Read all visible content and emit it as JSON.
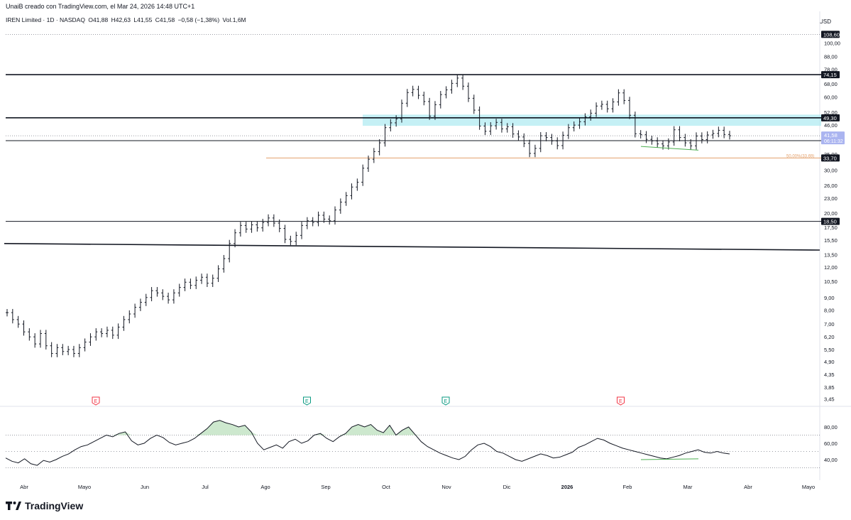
{
  "header": {
    "credit": "UnaiB creado con TradingView.com, el Mar 24, 2026 14:48 UTC+1",
    "symbol": "IREN Limited · 1D · NASDAQ",
    "open": "O41,88",
    "high": "H42,63",
    "low": "L41,55",
    "close": "C41,58",
    "change": "−0,58 (−1,38%)",
    "volume": "Vol.1,6M",
    "currency": "USD"
  },
  "brand": {
    "name": "TradingView",
    "icon": "tradingview-logo-icon"
  },
  "colors": {
    "candle": "#131722",
    "zone": "#b2ebf2",
    "fib_line": "#e3a06b",
    "divergence": "#4caf50",
    "rsi_fill": "#c8e6c9",
    "earnings_red": "#f23645",
    "earnings_green": "#089981",
    "badge_bg": "#131722",
    "current_price_bg": "#aab4f0"
  },
  "chart_data": {
    "type": "candlestick",
    "scale": "log",
    "ylim": [
      3.3,
      118
    ],
    "y_ticks": [
      "100,00",
      "88,00",
      "78,00",
      "68,00",
      "60,00",
      "52,00",
      "46,00",
      "40,00",
      "35,00",
      "30,00",
      "26,00",
      "23,00",
      "20,00",
      "17,50",
      "15,50",
      "13,50",
      "12,00",
      "10,50",
      "9,00",
      "8,00",
      "7,00",
      "6,20",
      "5,50",
      "4,90",
      "4,35",
      "3,85",
      "3,45"
    ],
    "x_labels": [
      "Abr",
      "Mayo",
      "Jun",
      "Jul",
      "Ago",
      "Sep",
      "Oct",
      "Nov",
      "Dic",
      "2026",
      "Feb",
      "Mar",
      "Abr",
      "Mayo"
    ],
    "price_badges": [
      {
        "label": "108,60",
        "value": 108.6,
        "style": "dark"
      },
      {
        "label": "74,15",
        "value": 74.15,
        "style": "dark"
      },
      {
        "label": "49,30",
        "value": 49.3,
        "style": "dark"
      },
      {
        "label": "39,70",
        "value": 39.7,
        "style": "dark"
      },
      {
        "label": "33,70",
        "value": 33.7,
        "style": "dark"
      },
      {
        "label": "18,50",
        "value": 18.5,
        "style": "dark"
      }
    ],
    "current_price": {
      "label": "41,58",
      "countdown": "06:11:32",
      "value": 41.58
    },
    "horizontal_levels": [
      {
        "value": 108.6,
        "style": "dotted"
      },
      {
        "value": 74.15,
        "style": "solid-thick"
      },
      {
        "value": 49.3,
        "style": "solid-thick"
      },
      {
        "value": 39.7,
        "style": "solid"
      },
      {
        "value": 18.5,
        "style": "solid"
      }
    ],
    "fib_level": {
      "value": 33.7,
      "label": "50,00%(33,69)"
    },
    "trendline": {
      "from": [
        0,
        15.0
      ],
      "to": [
        1,
        14.1
      ]
    },
    "earnings_markers": [
      {
        "label": "E",
        "kind": "red",
        "month_index": 1.4
      },
      {
        "label": "E",
        "kind": "green",
        "month_index": 4.9
      },
      {
        "label": "E",
        "kind": "green",
        "month_index": 7.2
      },
      {
        "label": "E",
        "kind": "red",
        "month_index": 10.1
      }
    ],
    "prices": [
      7.8,
      7.3,
      7.0,
      6.5,
      6.2,
      5.8,
      6.4,
      5.7,
      5.3,
      5.6,
      5.4,
      5.5,
      5.3,
      5.6,
      5.9,
      6.2,
      6.5,
      6.4,
      6.6,
      6.3,
      6.8,
      7.3,
      7.7,
      8.2,
      8.6,
      9.0,
      9.6,
      9.4,
      9.1,
      8.8,
      9.4,
      9.9,
      10.4,
      10.1,
      10.6,
      10.9,
      10.3,
      10.8,
      11.8,
      13.0,
      15.0,
      16.6,
      17.8,
      17.2,
      17.9,
      17.4,
      18.3,
      19.1,
      18.2,
      17.3,
      15.6,
      15.3,
      16.2,
      17.8,
      18.6,
      18.3,
      19.6,
      18.9,
      18.6,
      20.6,
      22.2,
      23.6,
      25.6,
      26.8,
      30.6,
      33.3,
      35.8,
      38.9,
      44.9,
      47.0,
      48.8,
      56.6,
      62.6,
      64.5,
      61.0,
      57.5,
      50.1,
      55.8,
      61.4,
      64.2,
      68.3,
      71.8,
      66.5,
      59.3,
      53.0,
      45.6,
      43.4,
      45.7,
      47.2,
      44.4,
      45.3,
      42.3,
      41.1,
      38.7,
      35.2,
      36.9,
      41.6,
      40.9,
      39.6,
      37.9,
      41.8,
      44.9,
      46.0,
      47.5,
      49.7,
      51.5,
      55.1,
      56.0,
      53.7,
      57.3,
      62.4,
      58.1,
      50.5,
      42.4,
      42.0,
      40.2,
      39.6,
      38.5,
      37.8,
      39.2,
      44.0,
      40.9,
      38.9,
      37.8,
      41.5,
      40.1,
      41.9,
      42.5,
      43.8,
      42.1,
      41.6
    ],
    "rsi": {
      "ylim": [
        20,
        100
      ],
      "ticks": [
        "80,00",
        "60,00",
        "40,00"
      ],
      "bands": [
        70,
        50,
        30
      ],
      "values": [
        42,
        38,
        36,
        41,
        35,
        33,
        39,
        37,
        40,
        44,
        47,
        52,
        56,
        58,
        62,
        66,
        70,
        68,
        72,
        74,
        63,
        58,
        60,
        66,
        70,
        67,
        61,
        58,
        60,
        62,
        66,
        72,
        78,
        86,
        88,
        85,
        83,
        80,
        82,
        74,
        60,
        52,
        55,
        58,
        54,
        62,
        65,
        60,
        63,
        70,
        72,
        66,
        62,
        68,
        72,
        80,
        83,
        80,
        83,
        76,
        73,
        82,
        70,
        76,
        80,
        71,
        62,
        56,
        52,
        48,
        45,
        42,
        40,
        44,
        52,
        58,
        60,
        56,
        50,
        48,
        44,
        40,
        38,
        41,
        44,
        47,
        45,
        42,
        43,
        46,
        49,
        55,
        58,
        62,
        66,
        64,
        60,
        57,
        54,
        52,
        50,
        48,
        46,
        44,
        42,
        41,
        43,
        45,
        48,
        50,
        52,
        49,
        48,
        50,
        48,
        47
      ],
      "divergence": true
    }
  }
}
